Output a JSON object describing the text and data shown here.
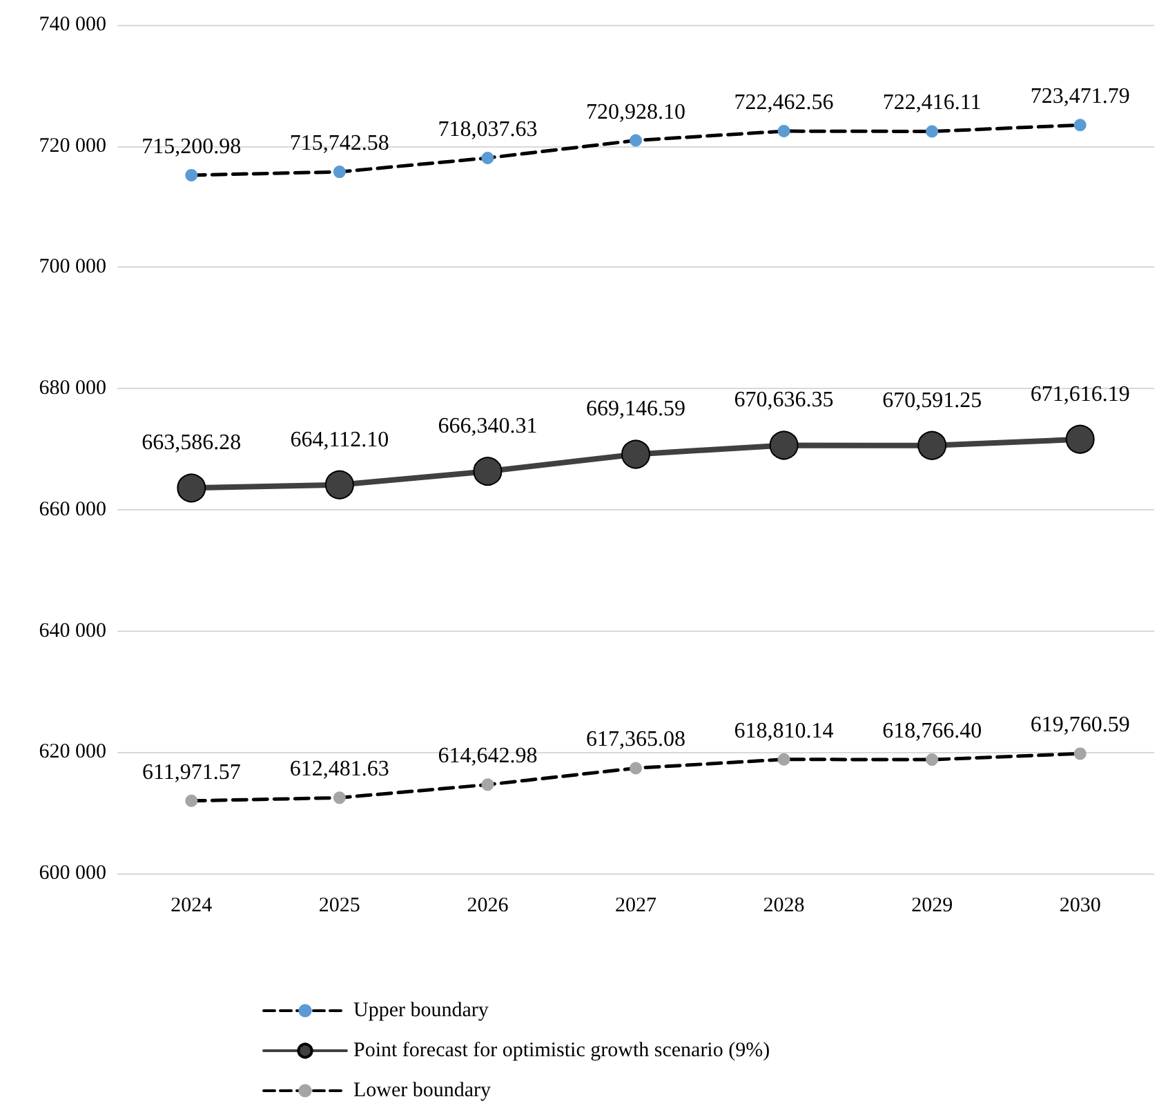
{
  "chart_data": {
    "type": "line",
    "categories": [
      "2024",
      "2025",
      "2026",
      "2027",
      "2028",
      "2029",
      "2030"
    ],
    "series": [
      {
        "name": "Upper boundary",
        "color": "#5b9bd5",
        "line_style": "dashed",
        "values": [
          715200.98,
          715742.58,
          718037.63,
          720928.1,
          722462.56,
          722416.11,
          723471.79
        ],
        "value_labels": [
          "715,200.98",
          "715,742.58",
          "718,037.63",
          "720,928.10",
          "722,462.56",
          "722,416.11",
          "723,471.79"
        ]
      },
      {
        "name": "Point forecast for optimistic growth scenario (9%)",
        "color": "#404040",
        "line_style": "solid",
        "values": [
          663586.28,
          664112.1,
          666340.31,
          669146.59,
          670636.35,
          670591.25,
          671616.19
        ],
        "value_labels": [
          "663,586.28",
          "664,112.10",
          "666,340.31",
          "669,146.59",
          "670,636.35",
          "670,591.25",
          "671,616.19"
        ]
      },
      {
        "name": "Lower boundary",
        "color": "#a5a5a5",
        "line_style": "dashed",
        "values": [
          611971.57,
          612481.63,
          614642.98,
          617365.08,
          618810.14,
          618766.4,
          619760.59
        ],
        "value_labels": [
          "611,971.57",
          "612,481.63",
          "614,642.98",
          "617,365.08",
          "618,810.14",
          "618,766.40",
          "619,760.59"
        ]
      }
    ],
    "ylim": [
      600000,
      740000
    ],
    "yticks": [
      {
        "value": 600000,
        "label": "600 000"
      },
      {
        "value": 620000,
        "label": "620 000"
      },
      {
        "value": 640000,
        "label": "640 000"
      },
      {
        "value": 660000,
        "label": "660 000"
      },
      {
        "value": 680000,
        "label": "680 000"
      },
      {
        "value": 700000,
        "label": "700 000"
      },
      {
        "value": 720000,
        "label": "720 000"
      },
      {
        "value": 740000,
        "label": "740 000"
      }
    ],
    "grid": "y",
    "legend": "bottom",
    "marker": "circle"
  }
}
